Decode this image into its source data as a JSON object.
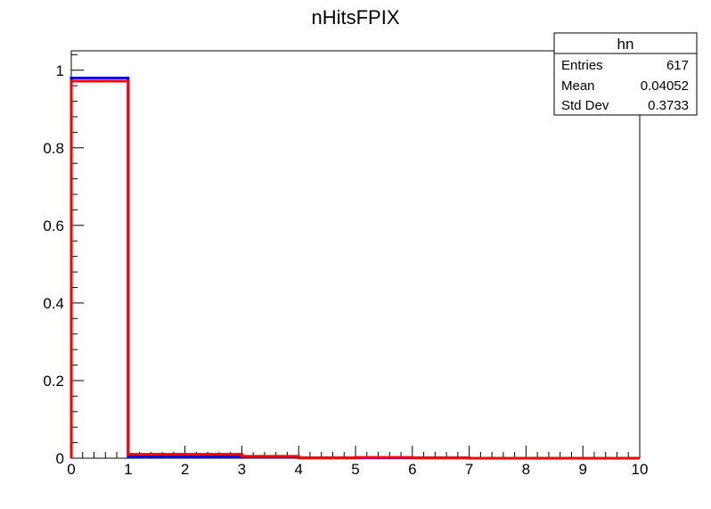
{
  "chart_data": {
    "type": "histogram",
    "title": "nHitsFPIX",
    "xlabel": "",
    "ylabel": "",
    "xlim": [
      0,
      10
    ],
    "ylim": [
      0,
      1.05
    ],
    "x_ticks": [
      "0",
      "1",
      "2",
      "3",
      "4",
      "5",
      "6",
      "7",
      "8",
      "9",
      "10"
    ],
    "y_ticks": [
      "0",
      "0.2",
      "0.4",
      "0.6",
      "0.8",
      "1"
    ],
    "bin_edges": [
      0,
      1,
      2,
      3,
      4,
      5,
      6,
      7,
      8,
      9,
      10
    ],
    "series": [
      {
        "color": "#0000ff",
        "values": [
          0.98,
          0.005,
          0.005,
          0.003,
          0.001,
          0.001,
          0.001,
          0.0,
          0.0,
          0.0
        ]
      },
      {
        "color": "#ff0000",
        "values": [
          0.972,
          0.01,
          0.01,
          0.005,
          0.001,
          0.002,
          0.001,
          0.0,
          0.0,
          0.0
        ]
      }
    ],
    "stats_box": {
      "title": "hn",
      "rows": [
        {
          "label": "Entries",
          "value": "617"
        },
        {
          "label": "Mean",
          "value": "0.04052"
        },
        {
          "label": "Std Dev",
          "value": "0.3733"
        }
      ]
    }
  }
}
